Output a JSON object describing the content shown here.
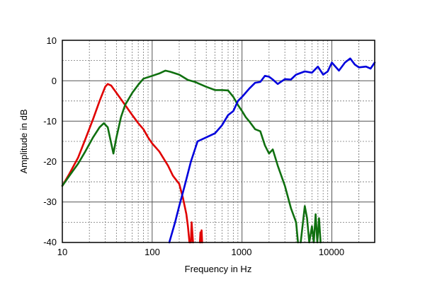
{
  "chart_data": {
    "type": "line",
    "title": "",
    "xlabel": "Frequency in Hz",
    "ylabel": "Amplitude in dB",
    "x_scale": "log",
    "xlim": [
      10,
      30000
    ],
    "ylim": [
      -40,
      10
    ],
    "grid": true,
    "legend": "none",
    "x_ticks": [
      {
        "value": 10,
        "label": "10"
      },
      {
        "value": 100,
        "label": "100"
      },
      {
        "value": 1000,
        "label": "1000"
      },
      {
        "value": 10000,
        "label": "10000"
      }
    ],
    "y_ticks": [
      {
        "value": 10,
        "label": "10"
      },
      {
        "value": 0,
        "label": "0"
      },
      {
        "value": -10,
        "label": "-10"
      },
      {
        "value": -20,
        "label": "-20"
      },
      {
        "value": -30,
        "label": "-30"
      },
      {
        "value": -40,
        "label": "-40"
      }
    ],
    "series": [
      {
        "color": "#e00000",
        "points": [
          [
            10,
            -26
          ],
          [
            12,
            -23
          ],
          [
            15,
            -19
          ],
          [
            18,
            -14.5
          ],
          [
            22,
            -9.5
          ],
          [
            26,
            -5
          ],
          [
            30,
            -1.5
          ],
          [
            32,
            -0.8
          ],
          [
            35,
            -1.2
          ],
          [
            40,
            -3
          ],
          [
            50,
            -6
          ],
          [
            60,
            -8.5
          ],
          [
            70,
            -10.5
          ],
          [
            80,
            -12
          ],
          [
            90,
            -14
          ],
          [
            100,
            -15.5
          ],
          [
            120,
            -17.5
          ],
          [
            150,
            -21
          ],
          [
            170,
            -23.5
          ],
          [
            200,
            -25.5
          ],
          [
            220,
            -29
          ],
          [
            240,
            -33
          ],
          [
            250,
            -36
          ],
          [
            260,
            -40
          ]
        ]
      },
      {
        "color": "#e00000",
        "points": [
          [
            270,
            -40
          ],
          [
            275,
            -35
          ],
          [
            280,
            -37.5
          ],
          [
            285,
            -40
          ]
        ]
      },
      {
        "color": "#e00000",
        "points": [
          [
            340,
            -40
          ],
          [
            345,
            -37.5
          ],
          [
            350,
            -40
          ],
          [
            355,
            -37
          ],
          [
            360,
            -40
          ]
        ]
      },
      {
        "color": "#107010",
        "points": [
          [
            10,
            -26
          ],
          [
            12,
            -23.5
          ],
          [
            15,
            -20.5
          ],
          [
            18,
            -17.5
          ],
          [
            22,
            -14
          ],
          [
            26,
            -11.5
          ],
          [
            29,
            -10.5
          ],
          [
            32,
            -11.5
          ],
          [
            35,
            -15.5
          ],
          [
            37,
            -18
          ],
          [
            40,
            -14
          ],
          [
            45,
            -9
          ],
          [
            50,
            -6
          ],
          [
            60,
            -3
          ],
          [
            70,
            -1
          ],
          [
            80,
            0.5
          ],
          [
            100,
            1.2
          ],
          [
            120,
            1.8
          ],
          [
            140,
            2.5
          ],
          [
            160,
            2.2
          ],
          [
            200,
            1.5
          ],
          [
            250,
            0.2
          ],
          [
            300,
            -0.3
          ],
          [
            400,
            -1.5
          ],
          [
            500,
            -2.3
          ],
          [
            600,
            -2.3
          ],
          [
            700,
            -2.4
          ],
          [
            800,
            -4
          ],
          [
            900,
            -6
          ],
          [
            1000,
            -7.5
          ],
          [
            1100,
            -9
          ],
          [
            1200,
            -10
          ],
          [
            1400,
            -12
          ],
          [
            1600,
            -12.5
          ],
          [
            1800,
            -16
          ],
          [
            2000,
            -18
          ],
          [
            2200,
            -17
          ],
          [
            2500,
            -21
          ],
          [
            3000,
            -26
          ],
          [
            3500,
            -31.5
          ],
          [
            4000,
            -35
          ],
          [
            4200,
            -40
          ]
        ]
      },
      {
        "color": "#107010",
        "points": [
          [
            4500,
            -40
          ],
          [
            5000,
            -31
          ],
          [
            5300,
            -34
          ],
          [
            5600,
            -40
          ],
          [
            6000,
            -36
          ],
          [
            6300,
            -40
          ],
          [
            6600,
            -33
          ],
          [
            6900,
            -40
          ],
          [
            7200,
            -34
          ],
          [
            7500,
            -40
          ]
        ]
      },
      {
        "color": "#0000dd",
        "points": [
          [
            155,
            -40
          ],
          [
            180,
            -35
          ],
          [
            200,
            -31
          ],
          [
            230,
            -26
          ],
          [
            270,
            -20
          ],
          [
            320,
            -15
          ],
          [
            400,
            -14
          ],
          [
            500,
            -13
          ],
          [
            600,
            -11
          ],
          [
            700,
            -8.5
          ],
          [
            800,
            -7.5
          ],
          [
            900,
            -5
          ],
          [
            1000,
            -4
          ],
          [
            1200,
            -2
          ],
          [
            1400,
            -0.5
          ],
          [
            1600,
            -0.3
          ],
          [
            1800,
            1.2
          ],
          [
            2000,
            1
          ],
          [
            2200,
            0.3
          ],
          [
            2500,
            -0.8
          ],
          [
            3000,
            0.4
          ],
          [
            3500,
            0.3
          ],
          [
            4000,
            1.5
          ],
          [
            5000,
            2.3
          ],
          [
            6000,
            2
          ],
          [
            7000,
            3.5
          ],
          [
            8000,
            1.5
          ],
          [
            9000,
            2.3
          ],
          [
            10000,
            4.5
          ],
          [
            12000,
            2.5
          ],
          [
            14000,
            4.5
          ],
          [
            16000,
            5.5
          ],
          [
            18000,
            4
          ],
          [
            20000,
            3.3
          ],
          [
            24000,
            3.5
          ],
          [
            27000,
            3
          ],
          [
            30000,
            4.5
          ]
        ]
      }
    ]
  }
}
